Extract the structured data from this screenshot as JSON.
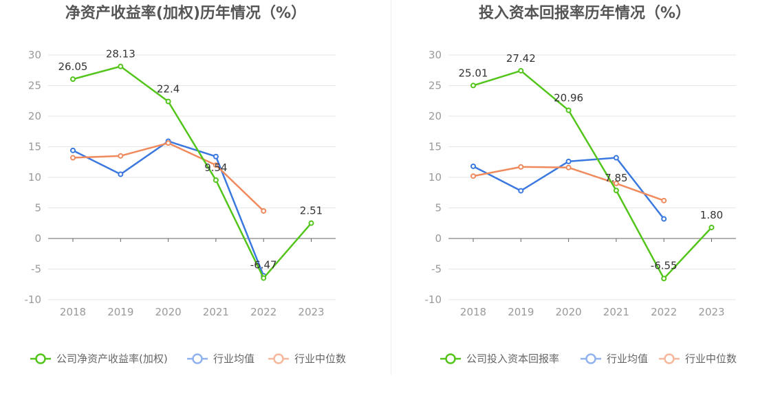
{
  "chart_data": [
    {
      "type": "line",
      "title": "净资产收益率(加权)历年情况（%）",
      "categories": [
        "2018",
        "2019",
        "2020",
        "2021",
        "2022",
        "2023"
      ],
      "ylim": [
        -10,
        30
      ],
      "yticks": [
        30,
        25,
        20,
        15,
        10,
        5,
        0,
        -5,
        -10
      ],
      "grid": true,
      "legend_position": "bottom",
      "series": [
        {
          "name": "公司净资产收益率(加权)",
          "color": "#52c41a",
          "values": [
            26.05,
            28.13,
            22.4,
            9.54,
            -6.47,
            2.51
          ],
          "labels": [
            "26.05",
            "28.13",
            "22.4",
            "9.54",
            "-6.47",
            "2.51"
          ]
        },
        {
          "name": "行业均值",
          "color": "#3a78e0",
          "values": [
            14.4,
            10.5,
            15.9,
            13.4,
            -6.1,
            null
          ]
        },
        {
          "name": "行业中位数",
          "color": "#f08a5d",
          "values": [
            13.2,
            13.5,
            15.6,
            12.0,
            4.5,
            null
          ]
        }
      ]
    },
    {
      "type": "line",
      "title": "投入资本回报率历年情况（%）",
      "categories": [
        "2018",
        "2019",
        "2020",
        "2021",
        "2022",
        "2023"
      ],
      "ylim": [
        -10,
        30
      ],
      "yticks": [
        30,
        25,
        20,
        15,
        10,
        5,
        0,
        -5,
        -10
      ],
      "grid": true,
      "legend_position": "bottom",
      "series": [
        {
          "name": "公司投入资本回报率",
          "color": "#52c41a",
          "values": [
            25.01,
            27.42,
            20.96,
            7.85,
            -6.55,
            1.8
          ],
          "labels": [
            "25.01",
            "27.42",
            "20.96",
            "7.85",
            "-6.55",
            "1.80"
          ]
        },
        {
          "name": "行业均值",
          "color": "#3a78e0",
          "values": [
            11.8,
            7.8,
            12.6,
            13.2,
            3.2,
            null
          ]
        },
        {
          "name": "行业中位数",
          "color": "#f08a5d",
          "values": [
            10.2,
            11.7,
            11.6,
            9.0,
            6.2,
            null
          ]
        }
      ]
    }
  ]
}
